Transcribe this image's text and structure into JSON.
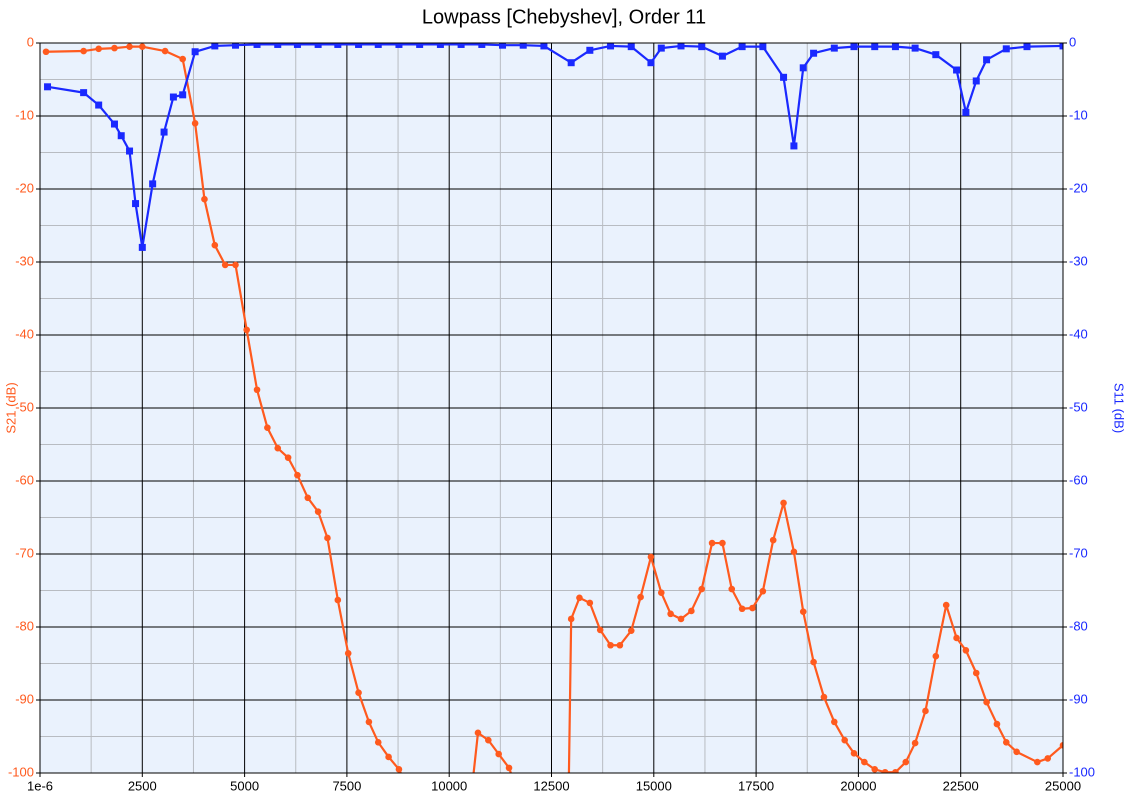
{
  "chart_data": {
    "type": "line",
    "title": "Lowpass [Chebyshev], Order 11",
    "ylabel": "S21 (dB)",
    "y2label": "S11 (dB)",
    "xlim": [
      1e-06,
      25000
    ],
    "xticks": [
      {
        "value": 1e-06,
        "label": "1e-6"
      },
      2500,
      5000,
      7500,
      10000,
      12500,
      15000,
      17500,
      20000,
      22500,
      25000
    ],
    "ylim": [
      -100,
      0
    ],
    "yticks": [
      0,
      -10,
      -20,
      -30,
      -40,
      -50,
      -60,
      -70,
      -80,
      -90,
      -100
    ],
    "y2lim": [
      -100,
      0
    ],
    "y2ticks": [
      0,
      -10,
      -20,
      -30,
      -40,
      -50,
      -60,
      -70,
      -80,
      -90,
      -100
    ],
    "grid": true,
    "minor_grid": true,
    "series": [
      {
        "color": "#ff5a1e",
        "marker": "circle",
        "axis": "y",
        "x": [
          147,
          1066,
          1434,
          1820,
          2188,
          2500,
          3057,
          3487,
          3791,
          4019,
          4272,
          4525,
          4778,
          5051,
          5304,
          5557,
          5810,
          6063,
          6291,
          6544,
          6797,
          7025,
          7278,
          7532,
          7785,
          8038,
          8266,
          8519,
          8772,
          9000,
          10500,
          10703,
          10956,
          11209,
          11462,
          11700,
          12900,
          12981,
          13183,
          13437,
          13690,
          13943,
          14171,
          14449,
          14677,
          14930,
          15183,
          15411,
          15665,
          15918,
          16171,
          16424,
          16677,
          16905,
          17158,
          17411,
          17665,
          17918,
          18171,
          18424,
          18652,
          18905,
          19158,
          19411,
          19665,
          19892,
          20146,
          20399,
          20652,
          20905,
          21158,
          21386,
          21639,
          21892,
          22146,
          22399,
          22627,
          22880,
          23133,
          23386,
          23614,
          23867,
          24373,
          24627,
          25000
        ],
        "values": [
          -1.2,
          -1.1,
          -0.8,
          -0.7,
          -0.5,
          -0.5,
          -1.1,
          -2.2,
          -11,
          -21.4,
          -27.7,
          -30.4,
          -30.4,
          -39.3,
          -47.5,
          -52.7,
          -55.5,
          -56.8,
          -59.2,
          -62.3,
          -64.2,
          -67.8,
          -76.3,
          -83.6,
          -89,
          -93,
          -95.8,
          -97.8,
          -99.5,
          -102,
          -105,
          -94.5,
          -95.5,
          -97.4,
          -99.3,
          -103,
          -110,
          -78.9,
          -76,
          -76.7,
          -80.4,
          -82.5,
          -82.5,
          -80.5,
          -75.9,
          -70.4,
          -75.3,
          -78.2,
          -78.9,
          -77.8,
          -74.8,
          -68.5,
          -68.5,
          -74.8,
          -77.5,
          -77.4,
          -75.1,
          -68.1,
          -63,
          -69.7,
          -77.9,
          -84.8,
          -89.6,
          -93,
          -95.5,
          -97.3,
          -98.5,
          -99.5,
          -99.9,
          -99.9,
          -98.5,
          -95.9,
          -91.5,
          -84,
          -77,
          -81.5,
          -83.2,
          -86.3,
          -90.3,
          -93.3,
          -95.8,
          -97.1,
          -98.5,
          -98,
          -96.2
        ]
      },
      {
        "color": "#1a29ff",
        "marker": "square",
        "axis": "y2",
        "x": [
          184,
          1066,
          1434,
          1820,
          1985,
          2188,
          2335,
          2500,
          2753,
          3032,
          3260,
          3487,
          3791,
          4272,
          4778,
          5304,
          5810,
          6291,
          6797,
          7278,
          7785,
          8266,
          8772,
          9278,
          9785,
          10291,
          10797,
          11303,
          11809,
          12315,
          12981,
          13437,
          13943,
          14449,
          14930,
          15183,
          15665,
          16171,
          16677,
          17158,
          17665,
          18171,
          18424,
          18652,
          18905,
          19411,
          19892,
          20399,
          20905,
          21386,
          21892,
          22399,
          22627,
          22880,
          23133,
          23614,
          24120,
          25000
        ],
        "values": [
          -6,
          -6.8,
          -8.5,
          -11.1,
          -12.7,
          -14.8,
          -22,
          -28,
          -19.3,
          -12.2,
          -7.4,
          -7.1,
          -1.2,
          -0.4,
          -0.3,
          -0.2,
          -0.2,
          -0.2,
          -0.2,
          -0.2,
          -0.2,
          -0.2,
          -0.2,
          -0.2,
          -0.2,
          -0.2,
          -0.2,
          -0.3,
          -0.3,
          -0.4,
          -2.7,
          -1,
          -0.4,
          -0.5,
          -2.7,
          -0.7,
          -0.4,
          -0.5,
          -1.8,
          -0.5,
          -0.5,
          -4.7,
          -14.1,
          -3.4,
          -1.4,
          -0.7,
          -0.5,
          -0.5,
          -0.5,
          -0.7,
          -1.6,
          -3.7,
          -9.5,
          -5.2,
          -2.3,
          -0.8,
          -0.5,
          -0.4
        ]
      }
    ]
  }
}
